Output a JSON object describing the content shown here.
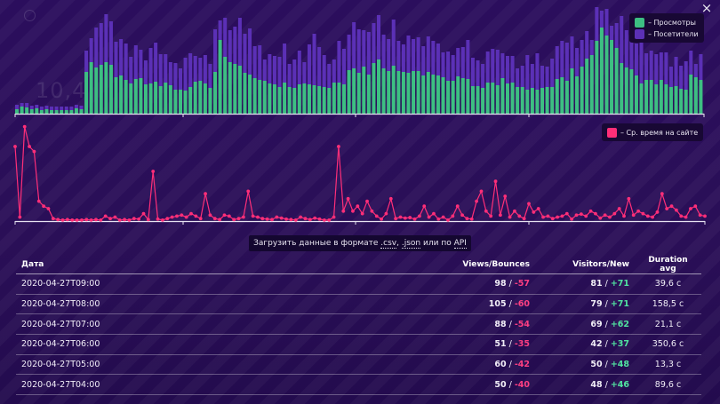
{
  "window": {
    "close_icon": "×",
    "ghost_number": "10,4"
  },
  "chart_data": [
    {
      "type": "bar",
      "stacked": true,
      "series": [
        {
          "name": "– Просмотры",
          "color": "#3dbf82",
          "values": [
            5,
            8,
            7,
            5,
            6,
            4,
            5,
            4,
            4,
            4,
            4,
            4,
            6,
            5,
            47,
            58,
            52,
            55,
            58,
            55,
            41,
            43,
            38,
            34,
            39,
            40,
            33,
            34,
            36,
            31,
            35,
            32,
            27,
            27,
            26,
            30,
            36,
            37,
            34,
            29,
            47,
            83,
            64,
            58,
            56,
            54,
            46,
            44,
            40,
            38,
            37,
            34,
            33,
            30,
            35,
            30,
            29,
            33,
            34,
            33,
            32,
            31,
            30,
            29,
            35,
            35,
            33,
            49,
            51,
            46,
            53,
            44,
            57,
            61,
            51,
            48,
            54,
            48,
            47,
            46,
            48,
            48,
            43,
            47,
            44,
            43,
            41,
            37,
            37,
            42,
            40,
            39,
            31,
            31,
            29,
            35,
            35,
            32,
            40,
            34,
            35,
            30,
            30,
            27,
            29,
            27,
            29,
            30,
            30,
            39,
            41,
            37,
            51,
            42,
            53,
            62,
            66,
            82,
            97,
            88,
            83,
            74,
            57,
            52,
            50,
            43,
            34,
            38,
            38,
            33,
            38,
            33,
            30,
            31,
            28,
            27,
            44,
            41,
            38
          ]
        },
        {
          "name": "– Посетители",
          "color": "#5b30b6",
          "values": [
            5,
            4,
            5,
            4,
            4,
            4,
            4,
            4,
            4,
            4,
            4,
            4,
            4,
            4,
            24,
            27,
            45,
            47,
            54,
            49,
            40,
            41,
            41,
            30,
            38,
            32,
            27,
            40,
            44,
            36,
            32,
            26,
            30,
            24,
            37,
            38,
            29,
            26,
            32,
            27,
            48,
            22,
            44,
            36,
            42,
            54,
            44,
            52,
            36,
            39,
            24,
            33,
            32,
            34,
            44,
            26,
            32,
            38,
            24,
            45,
            58,
            44,
            36,
            27,
            26,
            47,
            40,
            40,
            52,
            49,
            41,
            48,
            45,
            50,
            38,
            36,
            52,
            34,
            31,
            42,
            36,
            38,
            33,
            40,
            38,
            36,
            28,
            33,
            29,
            32,
            35,
            44,
            32,
            29,
            27,
            35,
            38,
            40,
            28,
            31,
            30,
            21,
            24,
            39,
            27,
            41,
            25,
            23,
            32,
            37,
            41,
            43,
            36,
            32,
            30,
            31,
            17,
            38,
            19,
            30,
            16,
            28,
            53,
            42,
            39,
            36,
            48,
            30,
            33,
            34,
            31,
            36,
            23,
            33,
            26,
            32,
            27,
            15,
            29
          ]
        }
      ]
    },
    {
      "type": "line",
      "series": [
        {
          "name": "– Ср. время на сайте",
          "color": "#ff2e78",
          "values": [
            150,
            8,
            190,
            150,
            140,
            40,
            30,
            25,
            5,
            3,
            2,
            3,
            2,
            2,
            2,
            3,
            2,
            3,
            2,
            10,
            5,
            8,
            2,
            3,
            2,
            5,
            4,
            15,
            3,
            100,
            4,
            2,
            5,
            8,
            10,
            12,
            8,
            15,
            10,
            5,
            55,
            12,
            5,
            3,
            12,
            10,
            3,
            5,
            8,
            60,
            10,
            8,
            5,
            4,
            3,
            8,
            6,
            4,
            3,
            2,
            8,
            5,
            3,
            6,
            4,
            2,
            2,
            8,
            150,
            20,
            45,
            20,
            30,
            15,
            40,
            20,
            10,
            4,
            15,
            45,
            5,
            8,
            6,
            7,
            4,
            10,
            30,
            8,
            15,
            4,
            8,
            2,
            10,
            30,
            12,
            5,
            4,
            40,
            60,
            20,
            10,
            80,
            12,
            50,
            8,
            20,
            10,
            5,
            35,
            18,
            25,
            8,
            10,
            5,
            8,
            10,
            15,
            4,
            12,
            14,
            10,
            20,
            15,
            6,
            12,
            8,
            15,
            25,
            10,
            45,
            12,
            20,
            15,
            10,
            8,
            18,
            55,
            25,
            30,
            22,
            10,
            8,
            25,
            30,
            12,
            10
          ]
        }
      ]
    }
  ],
  "legend_top": [
    {
      "label": "– Просмотры",
      "color": "#3dbf82"
    },
    {
      "label": "– Посетители",
      "color": "#5b30b6"
    }
  ],
  "legend_line": {
    "label": "– Ср. время на сайте",
    "color": "#ff2e78"
  },
  "export": {
    "prefix": "Загрузить данные в формате",
    "csv": ".csv",
    "sep": ",",
    "json": ".json",
    "or": "или по",
    "api": "API"
  },
  "table": {
    "headers": {
      "date": "Дата",
      "views": "Views/Bounces",
      "visitors": "Visitors/New",
      "duration": "Duration avg"
    },
    "rows": [
      {
        "date": "2020-04-27T09:00",
        "views": "98",
        "bounces": "-57",
        "visitors": "81",
        "new": "+71",
        "duration": "39,6 с"
      },
      {
        "date": "2020-04-27T08:00",
        "views": "105",
        "bounces": "-60",
        "visitors": "79",
        "new": "+71",
        "duration": "158,5 с"
      },
      {
        "date": "2020-04-27T07:00",
        "views": "88",
        "bounces": "-54",
        "visitors": "69",
        "new": "+62",
        "duration": "21,1 с"
      },
      {
        "date": "2020-04-27T06:00",
        "views": "51",
        "bounces": "-35",
        "visitors": "42",
        "new": "+37",
        "duration": "350,6 с"
      },
      {
        "date": "2020-04-27T05:00",
        "views": "60",
        "bounces": "-42",
        "visitors": "50",
        "new": "+48",
        "duration": "13,3 с"
      },
      {
        "date": "2020-04-27T04:00",
        "views": "50",
        "bounces": "-40",
        "visitors": "48",
        "new": "+46",
        "duration": "89,6 с"
      }
    ]
  }
}
